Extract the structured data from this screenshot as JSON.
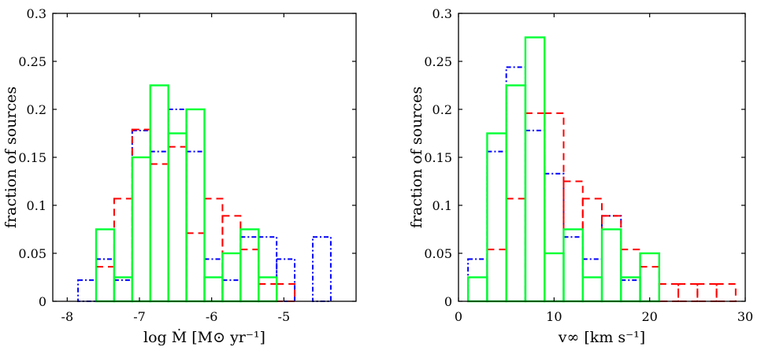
{
  "chart_data": [
    {
      "type": "histogram",
      "xlabel": "log Ṁ [M⊙ yr⁻¹]",
      "ylabel": "fraction of sources",
      "xlim": [
        -8.2,
        -4.0
      ],
      "ylim": [
        0,
        0.3
      ],
      "xticks": [
        -8,
        -7,
        -6,
        -5
      ],
      "xtick_labels": [
        "-8",
        "-7",
        "-6",
        "-5"
      ],
      "yticks": [
        0,
        0.05,
        0.1,
        0.15,
        0.2,
        0.25,
        0.3
      ],
      "ytick_labels": [
        "0",
        "0.05",
        "0.1",
        "0.15",
        "0.2",
        "0.25",
        "0.3"
      ],
      "series": [
        {
          "style": "dash-dot",
          "color": "#0000ff",
          "bin_edges": [
            -7.85,
            -7.6,
            -7.35,
            -7.1,
            -6.85,
            -6.6,
            -6.35,
            -6.1,
            -5.85,
            -5.6,
            -5.35,
            -5.1,
            -4.85,
            -4.6,
            -4.35
          ],
          "values": [
            0.022,
            0.044,
            0.022,
            0.178,
            0.156,
            0.2,
            0.156,
            0.044,
            0.022,
            0.067,
            0.067,
            0.044,
            0,
            0.067
          ]
        },
        {
          "style": "dashed",
          "color": "#ff0000",
          "bin_edges": [
            -7.6,
            -7.35,
            -7.1,
            -6.85,
            -6.6,
            -6.35,
            -6.1,
            -5.85,
            -5.6,
            -5.35,
            -5.1,
            -4.85,
            -4.6
          ],
          "values": [
            0.036,
            0.107,
            0.179,
            0.143,
            0.161,
            0.071,
            0.107,
            0.089,
            0.054,
            0.018,
            0.018,
            0
          ]
        },
        {
          "style": "solid",
          "color": "#00ff33",
          "bin_edges": [
            -7.6,
            -7.35,
            -7.1,
            -6.85,
            -6.6,
            -6.35,
            -6.1,
            -5.85,
            -5.6,
            -5.35,
            -5.1
          ],
          "values": [
            0.075,
            0.025,
            0.15,
            0.225,
            0.175,
            0.2,
            0.025,
            0.05,
            0.075,
            0.025
          ]
        }
      ]
    },
    {
      "type": "histogram",
      "xlabel": "v∞ [km s⁻¹]",
      "ylabel": "fraction of sources",
      "xlim": [
        0,
        30
      ],
      "ylim": [
        0,
        0.3
      ],
      "xticks": [
        0,
        10,
        20,
        30
      ],
      "xtick_labels": [
        "0",
        "10",
        "20",
        "30"
      ],
      "yticks": [
        0,
        0.05,
        0.1,
        0.15,
        0.2,
        0.25,
        0.3
      ],
      "ytick_labels": [
        "0",
        "0.05",
        "0.1",
        "0.15",
        "0.2",
        "0.25",
        "0.3"
      ],
      "series": [
        {
          "style": "dash-dot",
          "color": "#0000ff",
          "bin_edges": [
            1,
            3,
            5,
            7,
            9,
            11,
            13,
            15,
            17,
            19,
            21
          ],
          "values": [
            0.044,
            0.156,
            0.244,
            0.178,
            0.133,
            0.067,
            0.044,
            0.089,
            0.022,
            0
          ]
        },
        {
          "style": "dashed",
          "color": "#ff0000",
          "bin_edges": [
            3,
            5,
            7,
            9,
            11,
            13,
            15,
            17,
            19,
            21,
            23,
            25,
            27,
            29
          ],
          "values": [
            0.054,
            0.107,
            0.196,
            0.196,
            0.125,
            0.107,
            0.089,
            0.054,
            0.036,
            0.018,
            0.018,
            0.018,
            0.018
          ]
        },
        {
          "style": "solid",
          "color": "#00ff33",
          "bin_edges": [
            1,
            3,
            5,
            7,
            9,
            11,
            13,
            15,
            17,
            19,
            21
          ],
          "values": [
            0.025,
            0.175,
            0.225,
            0.275,
            0.05,
            0.075,
            0.025,
            0.075,
            0.025,
            0.05
          ]
        }
      ]
    }
  ]
}
